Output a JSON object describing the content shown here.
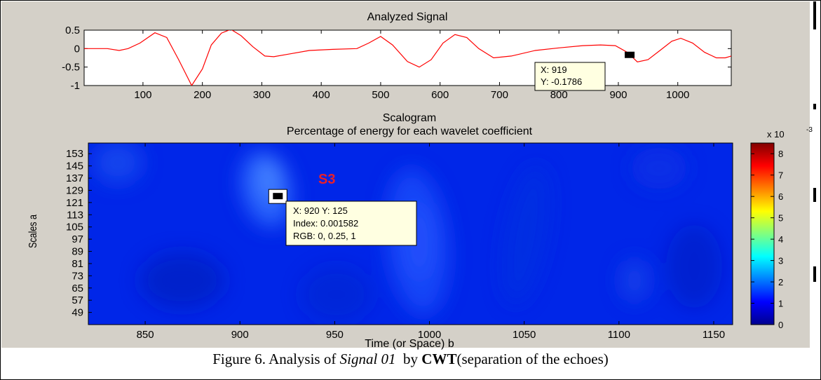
{
  "caption": {
    "prefix": "Figure 6. Analysis of ",
    "signal": "Signal 01",
    "by": "  by ",
    "method": "CWT",
    "suffix": "(separation of the echoes)"
  },
  "chart_data": [
    {
      "type": "line",
      "title": "Analyzed Signal",
      "xlim": [
        1,
        1090
      ],
      "ylim": [
        -1,
        0.5
      ],
      "xticks": [
        100,
        200,
        300,
        400,
        500,
        600,
        700,
        800,
        900,
        1000
      ],
      "yticks": [
        0.5,
        0,
        -0.5,
        -1
      ],
      "ytick_labels": [
        "0.5",
        "0",
        "-0.5",
        "-1"
      ],
      "series": [
        {
          "color": "#ff0000",
          "x": [
            1,
            40,
            60,
            75,
            95,
            120,
            140,
            160,
            182,
            200,
            215,
            232,
            248,
            265,
            285,
            305,
            320,
            345,
            380,
            420,
            460,
            480,
            500,
            520,
            545,
            565,
            585,
            605,
            625,
            645,
            665,
            690,
            720,
            760,
            800,
            840,
            870,
            895,
            915,
            932,
            950,
            970,
            990,
            1005,
            1025,
            1045,
            1065,
            1080,
            1090
          ],
          "y": [
            0,
            0,
            -0.05,
            0,
            0.15,
            0.43,
            0.3,
            -0.3,
            -1.0,
            -0.55,
            0.1,
            0.42,
            0.52,
            0.35,
            0.05,
            -0.2,
            -0.22,
            -0.15,
            -0.05,
            -0.02,
            0.0,
            0.15,
            0.33,
            0.1,
            -0.35,
            -0.5,
            -0.3,
            0.15,
            0.38,
            0.3,
            0.0,
            -0.25,
            -0.2,
            -0.05,
            0.02,
            0.08,
            0.1,
            0.08,
            -0.1,
            -0.36,
            -0.3,
            -0.05,
            0.2,
            0.28,
            0.15,
            -0.1,
            -0.25,
            -0.25,
            -0.2
          ]
        }
      ],
      "datatip": {
        "x": 919,
        "y": -0.1786,
        "line1": "X: 919",
        "line2": "Y: -0.1786"
      }
    },
    {
      "type": "heatmap",
      "title": "Scalogram",
      "subtitle": "Percentage of energy for each wavelet coefficient",
      "xlabel": "Time (or Space) b",
      "ylabel": "Scales a",
      "xlim": [
        820,
        1160
      ],
      "ylim": [
        41,
        160
      ],
      "xticks": [
        850,
        900,
        950,
        1000,
        1050,
        1100,
        1150
      ],
      "yticks": [
        153,
        145,
        137,
        129,
        121,
        113,
        105,
        97,
        89,
        81,
        73,
        65,
        57,
        49
      ],
      "colormap": "jet",
      "colorbar": {
        "multiplier": "x 10",
        "exponent": "-3",
        "range": [
          0,
          8.5
        ],
        "ticks": [
          "0",
          "1",
          "2",
          "3",
          "4",
          "5",
          "6",
          "7",
          "8"
        ]
      },
      "annotation": "S3",
      "datatip": {
        "x": 920,
        "y": 125,
        "line1": "X: 920 Y: 125",
        "line2": "Index: 0.001582",
        "line3": "RGB: 0, 0.25, 1"
      }
    }
  ]
}
